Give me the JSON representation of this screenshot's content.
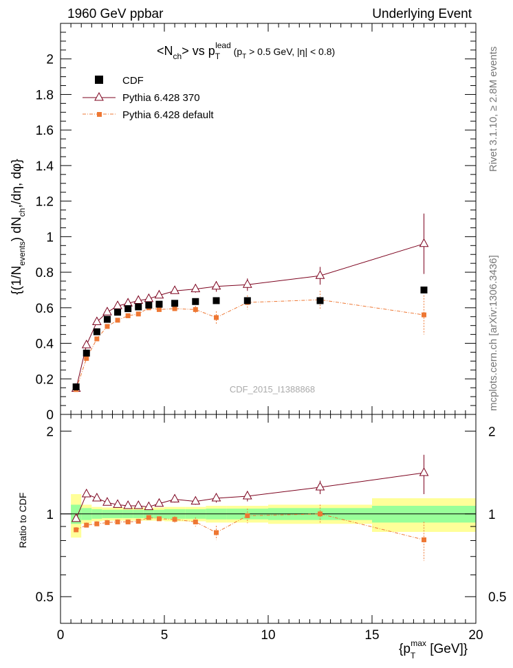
{
  "header": {
    "left": "1960 GeV ppbar",
    "right": "Underlying Event"
  },
  "side_text": {
    "rivet": "Rivet 3.1.10, ≥ 2.8M events",
    "mcplots": "mcplots.cern.ch [arXiv:1306.3436]"
  },
  "watermark": "CDF_2015_I1388868",
  "chart_data": {
    "type": "scatter",
    "title": "<Nch> vs pT lead (pT > 0.5 GeV, |η| < 0.8)",
    "xlabel": "{pT max [GeV]}",
    "ylabel_main": "{(1/Nevents) dNch,/dη, dφ}",
    "ylabel_ratio": "Ratio to CDF",
    "xlim": [
      0,
      20
    ],
    "ylim_main": [
      0,
      2.2
    ],
    "ylim_ratio": [
      0.4,
      2.3
    ],
    "ratio_log_scale": true,
    "x_ticks": [
      "0",
      "5",
      "10",
      "15",
      "20"
    ],
    "y_ticks_main": [
      "0",
      "0.2",
      "0.4",
      "0.6",
      "0.8",
      "1",
      "1.2",
      "1.4",
      "1.6",
      "1.8",
      "2"
    ],
    "y_ticks_ratio": [
      "0.5",
      "1",
      "2"
    ],
    "legend_position": "top-left",
    "x": [
      0.75,
      1.25,
      1.75,
      2.25,
      2.75,
      3.25,
      3.75,
      4.25,
      4.75,
      5.5,
      6.5,
      7.5,
      9.0,
      12.5,
      17.5
    ],
    "x_bins": [
      [
        0.5,
        1.0
      ],
      [
        1.0,
        1.5
      ],
      [
        1.5,
        2.0
      ],
      [
        2.0,
        2.5
      ],
      [
        2.5,
        3.0
      ],
      [
        3.0,
        3.5
      ],
      [
        3.5,
        4.0
      ],
      [
        4.0,
        4.5
      ],
      [
        4.5,
        5.0
      ],
      [
        5.0,
        6.0
      ],
      [
        6.0,
        7.0
      ],
      [
        7.0,
        8.0
      ],
      [
        8.0,
        10.0
      ],
      [
        10.0,
        15.0
      ],
      [
        15.0,
        20.0
      ]
    ],
    "series": [
      {
        "name": "CDF",
        "color": "#000000",
        "marker": "square",
        "values": [
          0.155,
          0.345,
          0.465,
          0.535,
          0.575,
          0.595,
          0.605,
          0.615,
          0.62,
          0.625,
          0.635,
          0.64,
          0.64,
          0.64,
          0.7
        ],
        "rel_band_inner": [
          0.08,
          0.05,
          0.04,
          0.035,
          0.035,
          0.035,
          0.035,
          0.035,
          0.035,
          0.04,
          0.04,
          0.045,
          0.045,
          0.05,
          0.07
        ],
        "rel_band_outer": [
          0.18,
          0.08,
          0.06,
          0.055,
          0.055,
          0.055,
          0.055,
          0.055,
          0.055,
          0.06,
          0.06,
          0.07,
          0.07,
          0.08,
          0.14
        ]
      },
      {
        "name": "Pythia 6.428 370",
        "color": "#7b001c",
        "marker": "triangle",
        "values": [
          0.145,
          0.39,
          0.52,
          0.575,
          0.61,
          0.625,
          0.64,
          0.65,
          0.67,
          0.695,
          0.705,
          0.72,
          0.73,
          0.78,
          0.96
        ],
        "errors": [
          0.01,
          0.01,
          0.01,
          0.01,
          0.01,
          0.01,
          0.01,
          0.01,
          0.012,
          0.015,
          0.02,
          0.03,
          0.035,
          0.05,
          0.17
        ],
        "ratio": [
          0.96,
          1.18,
          1.14,
          1.1,
          1.08,
          1.07,
          1.07,
          1.06,
          1.09,
          1.13,
          1.11,
          1.14,
          1.16,
          1.25,
          1.41
        ],
        "ratio_errors": [
          0.02,
          0.02,
          0.02,
          0.02,
          0.02,
          0.02,
          0.02,
          0.02,
          0.02,
          0.03,
          0.03,
          0.04,
          0.05,
          0.07,
          0.23
        ]
      },
      {
        "name": "Pythia 6.428 default",
        "color": "#ee7733",
        "marker": "small-square",
        "values": [
          0.14,
          0.315,
          0.425,
          0.495,
          0.53,
          0.555,
          0.565,
          0.6,
          0.59,
          0.595,
          0.59,
          0.545,
          0.63,
          0.645,
          0.56
        ],
        "errors": [
          0.01,
          0.01,
          0.01,
          0.01,
          0.01,
          0.01,
          0.01,
          0.012,
          0.012,
          0.015,
          0.02,
          0.035,
          0.04,
          0.05,
          0.11
        ],
        "ratio": [
          0.875,
          0.91,
          0.92,
          0.93,
          0.935,
          0.935,
          0.94,
          0.97,
          0.96,
          0.955,
          0.935,
          0.855,
          0.985,
          1.0,
          0.805
        ],
        "ratio_errors": [
          0.02,
          0.02,
          0.02,
          0.02,
          0.02,
          0.02,
          0.02,
          0.02,
          0.02,
          0.025,
          0.035,
          0.05,
          0.06,
          0.08,
          0.13
        ]
      }
    ],
    "band_colors": {
      "inner": "#99ff99",
      "outer": "#ffff99"
    }
  }
}
